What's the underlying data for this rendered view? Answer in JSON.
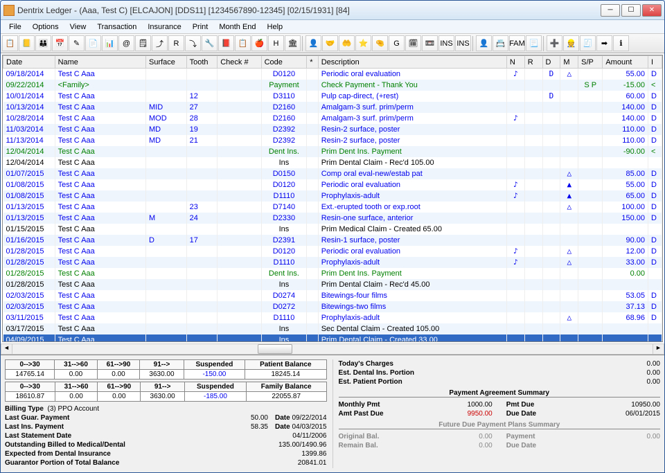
{
  "window": {
    "title": "Dentrix Ledger - (Aaa, Test C) [ELCAJON] [DDS11] [1234567890-12345] [02/15/1931] [84]"
  },
  "menu": [
    "File",
    "Options",
    "View",
    "Transaction",
    "Insurance",
    "Print",
    "Month End",
    "Help"
  ],
  "columns": [
    "Date",
    "Name",
    "Surface",
    "Tooth",
    "Check #",
    "Code",
    "*",
    "Description",
    "N",
    "R",
    "D",
    "M",
    "S/P",
    "Amount",
    "I"
  ],
  "colWidths": [
    "58px",
    "112px",
    "50px",
    "38px",
    "54px",
    "56px",
    "14px",
    "232px",
    "22px",
    "22px",
    "22px",
    "22px",
    "30px",
    "56px",
    "16px"
  ],
  "rows": [
    {
      "date": "09/18/2014",
      "name": "Test C Aaa",
      "surf": "",
      "tooth": "",
      "check": "",
      "code": "D0120",
      "star": "",
      "desc": "Periodic oral evaluation",
      "n": "♪",
      "r": "",
      "d": "D",
      "m": "△",
      "sp": "",
      "amt": "55.00",
      "i": "D",
      "cls": "c-blue",
      "alt": false
    },
    {
      "date": "09/22/2014",
      "name": "<Family>",
      "surf": "",
      "tooth": "",
      "check": "",
      "code": "Payment",
      "star": "",
      "desc": "Check Payment - Thank You",
      "n": "",
      "r": "",
      "d": "",
      "m": "",
      "sp": "S P",
      "amt": "-15.00",
      "i": "<",
      "cls": "c-green",
      "alt": true
    },
    {
      "date": "10/01/2014",
      "name": "Test C Aaa",
      "surf": "",
      "tooth": "12",
      "check": "",
      "code": "D3110",
      "star": "",
      "desc": "Pulp cap-direct, (+rest)",
      "n": "",
      "r": "",
      "d": "D",
      "m": "",
      "sp": "",
      "amt": "60.00",
      "i": "D",
      "cls": "c-blue",
      "alt": false
    },
    {
      "date": "10/13/2014",
      "name": "Test C Aaa",
      "surf": "MID",
      "tooth": "27",
      "check": "",
      "code": "D2160",
      "star": "",
      "desc": "Amalgam-3 surf. prim/perm",
      "n": "",
      "r": "",
      "d": "",
      "m": "",
      "sp": "",
      "amt": "140.00",
      "i": "D",
      "cls": "c-blue",
      "alt": true
    },
    {
      "date": "10/28/2014",
      "name": "Test C Aaa",
      "surf": "MOD",
      "tooth": "28",
      "check": "",
      "code": "D2160",
      "star": "",
      "desc": "Amalgam-3 surf. prim/perm",
      "n": "♪",
      "r": "",
      "d": "",
      "m": "",
      "sp": "",
      "amt": "140.00",
      "i": "D",
      "cls": "c-blue",
      "alt": false
    },
    {
      "date": "11/03/2014",
      "name": "Test C Aaa",
      "surf": "MD",
      "tooth": "19",
      "check": "",
      "code": "D2392",
      "star": "",
      "desc": "Resin-2 surface, poster",
      "n": "",
      "r": "",
      "d": "",
      "m": "",
      "sp": "",
      "amt": "110.00",
      "i": "D",
      "cls": "c-blue",
      "alt": true
    },
    {
      "date": "11/13/2014",
      "name": "Test C Aaa",
      "surf": "MD",
      "tooth": "21",
      "check": "",
      "code": "D2392",
      "star": "",
      "desc": "Resin-2 surface, poster",
      "n": "",
      "r": "",
      "d": "",
      "m": "",
      "sp": "",
      "amt": "110.00",
      "i": "D",
      "cls": "c-blue",
      "alt": false
    },
    {
      "date": "12/04/2014",
      "name": "Test C Aaa",
      "surf": "",
      "tooth": "",
      "check": "",
      "code": "Dent Ins.",
      "star": "",
      "desc": "Prim Dent Ins. Payment",
      "n": "",
      "r": "",
      "d": "",
      "m": "",
      "sp": "",
      "amt": "-90.00",
      "i": "<",
      "cls": "c-green",
      "alt": true
    },
    {
      "date": "12/04/2014",
      "name": "Test C Aaa",
      "surf": "",
      "tooth": "",
      "check": "",
      "code": "Ins",
      "star": "",
      "desc": "Prim Dental Claim - Rec'd 105.00",
      "n": "",
      "r": "",
      "d": "",
      "m": "",
      "sp": "",
      "amt": "",
      "i": "",
      "cls": "c-black",
      "alt": false
    },
    {
      "date": "01/07/2015",
      "name": "Test C Aaa",
      "surf": "",
      "tooth": "",
      "check": "",
      "code": "D0150",
      "star": "",
      "desc": "Comp oral eval-new/estab pat",
      "n": "",
      "r": "",
      "d": "",
      "m": "△",
      "sp": "",
      "amt": "85.00",
      "i": "D",
      "cls": "c-blue",
      "alt": true
    },
    {
      "date": "01/08/2015",
      "name": "Test C Aaa",
      "surf": "",
      "tooth": "",
      "check": "",
      "code": "D0120",
      "star": "",
      "desc": "Periodic oral evaluation",
      "n": "♪",
      "r": "",
      "d": "",
      "m": "▲",
      "sp": "",
      "amt": "55.00",
      "i": "D",
      "cls": "c-blue",
      "alt": false
    },
    {
      "date": "01/08/2015",
      "name": "Test C Aaa",
      "surf": "",
      "tooth": "",
      "check": "",
      "code": "D1110",
      "star": "",
      "desc": "Prophylaxis-adult",
      "n": "♪",
      "r": "",
      "d": "",
      "m": "▲",
      "sp": "",
      "amt": "65.00",
      "i": "D",
      "cls": "c-blue",
      "alt": true
    },
    {
      "date": "01/13/2015",
      "name": "Test C Aaa",
      "surf": "",
      "tooth": "23",
      "check": "",
      "code": "D7140",
      "star": "",
      "desc": "Ext.-erupted tooth or exp.root",
      "n": "",
      "r": "",
      "d": "",
      "m": "△",
      "sp": "",
      "amt": "100.00",
      "i": "D",
      "cls": "c-blue",
      "alt": false
    },
    {
      "date": "01/13/2015",
      "name": "Test C Aaa",
      "surf": "M",
      "tooth": "24",
      "check": "",
      "code": "D2330",
      "star": "",
      "desc": "Resin-one surface, anterior",
      "n": "",
      "r": "",
      "d": "",
      "m": "",
      "sp": "",
      "amt": "150.00",
      "i": "D",
      "cls": "c-blue",
      "alt": true
    },
    {
      "date": "01/15/2015",
      "name": "Test C Aaa",
      "surf": "",
      "tooth": "",
      "check": "",
      "code": "Ins",
      "star": "",
      "desc": "Prim Medical Claim - Created 65.00",
      "n": "",
      "r": "",
      "d": "",
      "m": "",
      "sp": "",
      "amt": "",
      "i": "",
      "cls": "c-black",
      "alt": false
    },
    {
      "date": "01/16/2015",
      "name": "Test C Aaa",
      "surf": "D",
      "tooth": "17",
      "check": "",
      "code": "D2391",
      "star": "",
      "desc": "Resin-1 surface, poster",
      "n": "",
      "r": "",
      "d": "",
      "m": "",
      "sp": "",
      "amt": "90.00",
      "i": "D",
      "cls": "c-blue",
      "alt": true
    },
    {
      "date": "01/28/2015",
      "name": "Test C Aaa",
      "surf": "",
      "tooth": "",
      "check": "",
      "code": "D0120",
      "star": "",
      "desc": "Periodic oral evaluation",
      "n": "♪",
      "r": "",
      "d": "",
      "m": "△",
      "sp": "",
      "amt": "12.00",
      "i": "D",
      "cls": "c-blue",
      "alt": false
    },
    {
      "date": "01/28/2015",
      "name": "Test C Aaa",
      "surf": "",
      "tooth": "",
      "check": "",
      "code": "D1110",
      "star": "",
      "desc": "Prophylaxis-adult",
      "n": "♪",
      "r": "",
      "d": "",
      "m": "△",
      "sp": "",
      "amt": "33.00",
      "i": "D",
      "cls": "c-blue",
      "alt": true
    },
    {
      "date": "01/28/2015",
      "name": "Test C Aaa",
      "surf": "",
      "tooth": "",
      "check": "",
      "code": "Dent Ins.",
      "star": "",
      "desc": "Prim Dent Ins. Payment",
      "n": "",
      "r": "",
      "d": "",
      "m": "",
      "sp": "",
      "amt": "0.00",
      "i": "",
      "cls": "c-green",
      "alt": false
    },
    {
      "date": "01/28/2015",
      "name": "Test C Aaa",
      "surf": "",
      "tooth": "",
      "check": "",
      "code": "Ins",
      "star": "",
      "desc": "Prim Dental Claim - Rec'd 45.00",
      "n": "",
      "r": "",
      "d": "",
      "m": "",
      "sp": "",
      "amt": "",
      "i": "",
      "cls": "c-black",
      "alt": true
    },
    {
      "date": "02/03/2015",
      "name": "Test C Aaa",
      "surf": "",
      "tooth": "",
      "check": "",
      "code": "D0274",
      "star": "",
      "desc": "Bitewings-four films",
      "n": "",
      "r": "",
      "d": "",
      "m": "",
      "sp": "",
      "amt": "53.05",
      "i": "D",
      "cls": "c-blue",
      "alt": false
    },
    {
      "date": "02/03/2015",
      "name": "Test C Aaa",
      "surf": "",
      "tooth": "",
      "check": "",
      "code": "D0272",
      "star": "",
      "desc": "Bitewings-two films",
      "n": "",
      "r": "",
      "d": "",
      "m": "",
      "sp": "",
      "amt": "37.13",
      "i": "D",
      "cls": "c-blue",
      "alt": true
    },
    {
      "date": "03/11/2015",
      "name": "Test C Aaa",
      "surf": "",
      "tooth": "",
      "check": "",
      "code": "D1110",
      "star": "",
      "desc": "Prophylaxis-adult",
      "n": "",
      "r": "",
      "d": "",
      "m": "△",
      "sp": "",
      "amt": "68.96",
      "i": "D",
      "cls": "c-blue",
      "alt": false
    },
    {
      "date": "03/17/2015",
      "name": "Test C Aaa",
      "surf": "",
      "tooth": "",
      "check": "",
      "code": "Ins",
      "star": "",
      "desc": "Sec Dental Claim - Created 105.00",
      "n": "",
      "r": "",
      "d": "",
      "m": "",
      "sp": "",
      "amt": "",
      "i": "",
      "cls": "c-black",
      "alt": true
    },
    {
      "date": "04/09/2015",
      "name": "Test C Aaa",
      "surf": "",
      "tooth": "",
      "check": "",
      "code": "Ins",
      "star": "",
      "desc": "Prim Dental Claim - Created 33.00",
      "n": "",
      "r": "",
      "d": "",
      "m": "",
      "sp": "",
      "amt": "",
      "i": "",
      "cls": "c-black",
      "alt": false,
      "selected": true
    }
  ],
  "agingHeaders": [
    "0-->30",
    "31-->60",
    "61-->90",
    "91-->",
    "Suspended",
    "Patient Balance"
  ],
  "agingPatient": [
    "14765.14",
    "0.00",
    "0.00",
    "3630.00",
    "-150.00",
    "18245.14"
  ],
  "agingHeaders2": [
    "0-->30",
    "31-->60",
    "61-->90",
    "91-->",
    "Suspended",
    "Family Balance"
  ],
  "agingFamily": [
    "18610.87",
    "0.00",
    "0.00",
    "3630.00",
    "-185.00",
    "22055.87"
  ],
  "billing": {
    "type_label": "Billing Type",
    "type_value": "(3) PPO Account",
    "rows": [
      {
        "label": "Last Guar. Payment",
        "val": "50.00",
        "date_label": "Date",
        "date": "09/22/2014"
      },
      {
        "label": "Last Ins. Payment",
        "val": "58.35",
        "date_label": "Date",
        "date": "04/03/2015"
      },
      {
        "label": "Last Statement Date",
        "val": "",
        "date_label": "",
        "date": "04/11/2006"
      },
      {
        "label": "Outstanding Billed to Medical/Dental",
        "val": "",
        "date_label": "",
        "date": "135.00/1490.96"
      },
      {
        "label": "Expected from Dental Insurance",
        "val": "",
        "date_label": "",
        "date": "1399.86"
      },
      {
        "label": "Guarantor Portion of Total Balance",
        "val": "",
        "date_label": "",
        "date": "20841.01"
      }
    ]
  },
  "todaySummary": [
    {
      "label": "Today's Charges",
      "val": "0.00"
    },
    {
      "label": "Est. Dental Ins. Portion",
      "val": "0.00"
    },
    {
      "label": "Est. Patient Portion",
      "val": "0.00"
    }
  ],
  "paymentAgreement": {
    "heading": "Payment Agreement Summary",
    "rows": [
      {
        "l1": "Monthly Pmt",
        "v1": "1000.00",
        "l2": "Pmt Due",
        "v2": "10950.00",
        "red": false
      },
      {
        "l1": "Amt Past Due",
        "v1": "9950.00",
        "l2": "Due Date",
        "v2": "06/01/2015",
        "red": true
      }
    ]
  },
  "futurePlans": {
    "heading": "Future Due Payment Plans Summary",
    "rows": [
      {
        "l1": "Original Bal.",
        "v1": "0.00",
        "l2": "Payment",
        "v2": "0.00"
      },
      {
        "l1": "Remain Bal.",
        "v1": "0.00",
        "l2": "Due Date",
        "v2": ""
      }
    ]
  },
  "toolbarIcons": [
    "📋",
    "📒",
    "👪",
    "📅",
    "✎",
    "📄",
    "📊",
    "@",
    "🗒",
    "⤴",
    "R",
    "⤵",
    "🔧",
    "📕",
    "📋",
    "🍎",
    "H",
    "🏛",
    "",
    "👤",
    "🤝",
    "🤲",
    "⭐",
    "🤏",
    "G",
    "🗓",
    "📼",
    "INS",
    "INS",
    "",
    "👤",
    "📇",
    "FAM",
    "📃",
    "",
    "➕",
    "👷",
    "🧾",
    "➡",
    "ℹ"
  ]
}
